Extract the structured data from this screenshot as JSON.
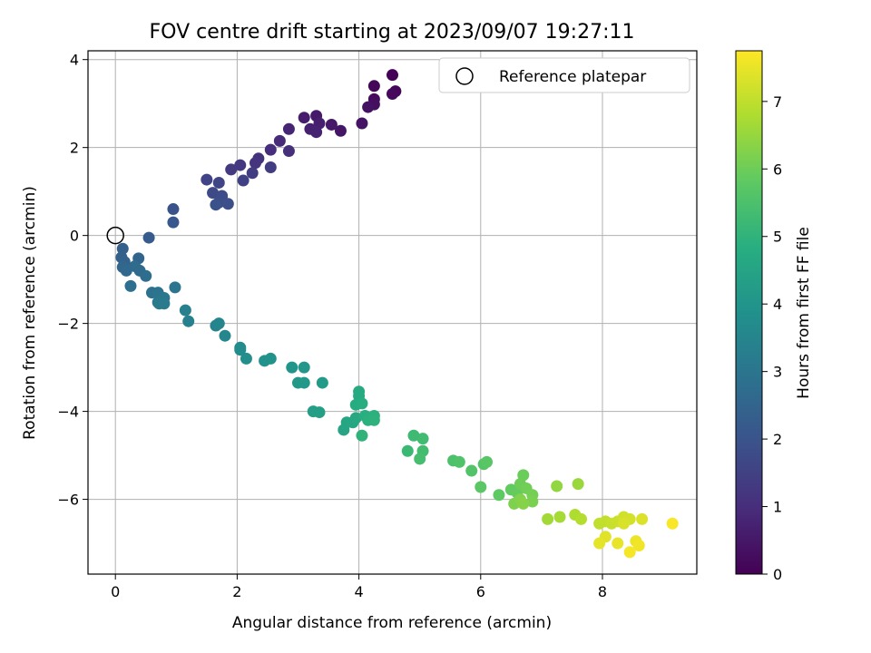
{
  "chart_data": {
    "type": "scatter",
    "title": "FOV centre drift starting at 2023/09/07 19:27:11",
    "xlabel": "Angular distance from reference (arcmin)",
    "ylabel": "Rotation from reference (arcmin)",
    "xlim": [
      -0.45,
      9.55
    ],
    "ylim": [
      -7.7,
      4.2
    ],
    "xticks": [
      0,
      2,
      4,
      6,
      8
    ],
    "yticks": [
      -6,
      -4,
      -2,
      0,
      2,
      4
    ],
    "xtick_labels": [
      "0",
      "2",
      "4",
      "6",
      "8"
    ],
    "ytick_labels": [
      "−6",
      "−4",
      "−2",
      "0",
      "2",
      "4"
    ],
    "grid": true,
    "colormap": "viridis",
    "colorbar": {
      "label": "Hours from first FF file",
      "range": [
        0,
        7.75
      ],
      "ticks": [
        0,
        1,
        2,
        3,
        4,
        5,
        6,
        7
      ],
      "tick_labels": [
        "0",
        "1",
        "2",
        "3",
        "4",
        "5",
        "6",
        "7"
      ]
    },
    "legend": {
      "placement": "top-right",
      "entries": [
        "Reference platepar"
      ]
    },
    "reference_point": {
      "x": 0,
      "y": 0
    },
    "points": [
      {
        "x": 4.55,
        "y": 3.65,
        "t": 0.05
      },
      {
        "x": 4.25,
        "y": 3.4,
        "t": 0.1
      },
      {
        "x": 4.6,
        "y": 3.28,
        "t": 0.15
      },
      {
        "x": 4.55,
        "y": 3.22,
        "t": 0.2
      },
      {
        "x": 4.25,
        "y": 3.1,
        "t": 0.25
      },
      {
        "x": 4.25,
        "y": 2.98,
        "t": 0.3
      },
      {
        "x": 4.15,
        "y": 2.92,
        "t": 0.35
      },
      {
        "x": 4.05,
        "y": 2.55,
        "t": 0.4
      },
      {
        "x": 3.7,
        "y": 2.38,
        "t": 0.45
      },
      {
        "x": 3.55,
        "y": 2.52,
        "t": 0.5
      },
      {
        "x": 3.3,
        "y": 2.72,
        "t": 0.55
      },
      {
        "x": 3.1,
        "y": 2.68,
        "t": 0.6
      },
      {
        "x": 3.35,
        "y": 2.55,
        "t": 0.65
      },
      {
        "x": 3.2,
        "y": 2.42,
        "t": 0.7
      },
      {
        "x": 3.3,
        "y": 2.35,
        "t": 0.75
      },
      {
        "x": 2.85,
        "y": 2.42,
        "t": 0.8
      },
      {
        "x": 2.7,
        "y": 2.15,
        "t": 0.9
      },
      {
        "x": 2.55,
        "y": 1.95,
        "t": 1.0
      },
      {
        "x": 2.85,
        "y": 1.92,
        "t": 1.05
      },
      {
        "x": 2.35,
        "y": 1.75,
        "t": 1.1
      },
      {
        "x": 2.3,
        "y": 1.65,
        "t": 1.15
      },
      {
        "x": 2.05,
        "y": 1.6,
        "t": 1.25
      },
      {
        "x": 1.9,
        "y": 1.5,
        "t": 1.3
      },
      {
        "x": 2.55,
        "y": 1.55,
        "t": 1.35
      },
      {
        "x": 2.25,
        "y": 1.42,
        "t": 1.4
      },
      {
        "x": 2.1,
        "y": 1.25,
        "t": 1.5
      },
      {
        "x": 1.5,
        "y": 1.27,
        "t": 1.55
      },
      {
        "x": 1.7,
        "y": 1.2,
        "t": 1.6
      },
      {
        "x": 1.6,
        "y": 0.97,
        "t": 1.7
      },
      {
        "x": 1.75,
        "y": 0.9,
        "t": 1.75
      },
      {
        "x": 1.7,
        "y": 0.75,
        "t": 1.8
      },
      {
        "x": 1.85,
        "y": 0.72,
        "t": 1.85
      },
      {
        "x": 1.65,
        "y": 0.7,
        "t": 1.9
      },
      {
        "x": 0.95,
        "y": 0.6,
        "t": 2.0
      },
      {
        "x": 0.95,
        "y": 0.3,
        "t": 2.1
      },
      {
        "x": 0.55,
        "y": -0.05,
        "t": 2.2
      },
      {
        "x": 0.12,
        "y": -0.3,
        "t": 2.35
      },
      {
        "x": 0.1,
        "y": -0.5,
        "t": 2.4
      },
      {
        "x": 0.15,
        "y": -0.6,
        "t": 2.45
      },
      {
        "x": 0.38,
        "y": -0.52,
        "t": 2.5
      },
      {
        "x": 0.12,
        "y": -0.72,
        "t": 2.55
      },
      {
        "x": 0.18,
        "y": -0.8,
        "t": 2.6
      },
      {
        "x": 0.4,
        "y": -0.8,
        "t": 2.65
      },
      {
        "x": 0.32,
        "y": -0.7,
        "t": 2.7
      },
      {
        "x": 0.5,
        "y": -0.92,
        "t": 2.75
      },
      {
        "x": 0.25,
        "y": -1.15,
        "t": 2.8
      },
      {
        "x": 0.6,
        "y": -1.3,
        "t": 2.9
      },
      {
        "x": 0.7,
        "y": -1.3,
        "t": 2.95
      },
      {
        "x": 0.98,
        "y": -1.18,
        "t": 3.0
      },
      {
        "x": 0.8,
        "y": -1.42,
        "t": 3.05
      },
      {
        "x": 0.7,
        "y": -1.52,
        "t": 3.1
      },
      {
        "x": 0.72,
        "y": -1.55,
        "t": 3.15
      },
      {
        "x": 0.8,
        "y": -1.55,
        "t": 3.2
      },
      {
        "x": 1.15,
        "y": -1.7,
        "t": 3.3
      },
      {
        "x": 1.2,
        "y": -1.95,
        "t": 3.35
      },
      {
        "x": 1.65,
        "y": -2.05,
        "t": 3.45
      },
      {
        "x": 1.7,
        "y": -2.0,
        "t": 3.5
      },
      {
        "x": 1.8,
        "y": -2.28,
        "t": 3.55
      },
      {
        "x": 2.05,
        "y": -2.55,
        "t": 3.7
      },
      {
        "x": 2.05,
        "y": -2.6,
        "t": 3.75
      },
      {
        "x": 2.15,
        "y": -2.8,
        "t": 3.8
      },
      {
        "x": 2.45,
        "y": -2.85,
        "t": 3.9
      },
      {
        "x": 2.55,
        "y": -2.8,
        "t": 3.95
      },
      {
        "x": 2.9,
        "y": -3.0,
        "t": 4.0
      },
      {
        "x": 3.1,
        "y": -3.0,
        "t": 4.05
      },
      {
        "x": 3.0,
        "y": -3.35,
        "t": 4.1
      },
      {
        "x": 3.1,
        "y": -3.35,
        "t": 4.15
      },
      {
        "x": 3.4,
        "y": -3.35,
        "t": 4.2
      },
      {
        "x": 3.25,
        "y": -4.0,
        "t": 4.3
      },
      {
        "x": 3.35,
        "y": -4.02,
        "t": 4.35
      },
      {
        "x": 3.75,
        "y": -4.42,
        "t": 4.5
      },
      {
        "x": 3.8,
        "y": -4.25,
        "t": 4.55
      },
      {
        "x": 3.9,
        "y": -4.25,
        "t": 4.6
      },
      {
        "x": 3.95,
        "y": -4.15,
        "t": 4.65
      },
      {
        "x": 4.0,
        "y": -3.55,
        "t": 4.7
      },
      {
        "x": 4.0,
        "y": -3.65,
        "t": 4.72
      },
      {
        "x": 3.95,
        "y": -3.85,
        "t": 4.75
      },
      {
        "x": 4.05,
        "y": -3.82,
        "t": 4.8
      },
      {
        "x": 4.1,
        "y": -4.1,
        "t": 4.85
      },
      {
        "x": 4.15,
        "y": -4.2,
        "t": 4.9
      },
      {
        "x": 4.25,
        "y": -4.1,
        "t": 4.92
      },
      {
        "x": 4.25,
        "y": -4.2,
        "t": 4.95
      },
      {
        "x": 4.05,
        "y": -4.55,
        "t": 5.0
      },
      {
        "x": 4.8,
        "y": -4.9,
        "t": 5.2
      },
      {
        "x": 4.9,
        "y": -4.55,
        "t": 5.25
      },
      {
        "x": 5.05,
        "y": -4.62,
        "t": 5.3
      },
      {
        "x": 5.05,
        "y": -4.9,
        "t": 5.35
      },
      {
        "x": 5.0,
        "y": -5.08,
        "t": 5.4
      },
      {
        "x": 5.55,
        "y": -5.12,
        "t": 5.5
      },
      {
        "x": 5.65,
        "y": -5.15,
        "t": 5.55
      },
      {
        "x": 5.85,
        "y": -5.35,
        "t": 5.6
      },
      {
        "x": 6.05,
        "y": -5.2,
        "t": 5.65
      },
      {
        "x": 6.1,
        "y": -5.15,
        "t": 5.7
      },
      {
        "x": 6.0,
        "y": -5.72,
        "t": 5.75
      },
      {
        "x": 6.3,
        "y": -5.9,
        "t": 5.8
      },
      {
        "x": 6.5,
        "y": -5.78,
        "t": 5.85
      },
      {
        "x": 6.6,
        "y": -5.85,
        "t": 5.9
      },
      {
        "x": 6.7,
        "y": -5.45,
        "t": 5.95
      },
      {
        "x": 6.65,
        "y": -5.65,
        "t": 6.0
      },
      {
        "x": 6.75,
        "y": -5.75,
        "t": 6.05
      },
      {
        "x": 6.85,
        "y": -5.9,
        "t": 6.1
      },
      {
        "x": 6.85,
        "y": -6.05,
        "t": 6.15
      },
      {
        "x": 6.55,
        "y": -6.1,
        "t": 6.2
      },
      {
        "x": 6.65,
        "y": -6.0,
        "t": 6.25
      },
      {
        "x": 6.7,
        "y": -6.1,
        "t": 6.3
      },
      {
        "x": 7.25,
        "y": -5.7,
        "t": 6.45
      },
      {
        "x": 7.6,
        "y": -5.65,
        "t": 6.55
      },
      {
        "x": 7.1,
        "y": -6.45,
        "t": 6.65
      },
      {
        "x": 7.3,
        "y": -6.4,
        "t": 6.7
      },
      {
        "x": 7.55,
        "y": -6.35,
        "t": 6.8
      },
      {
        "x": 7.65,
        "y": -6.45,
        "t": 6.85
      },
      {
        "x": 7.95,
        "y": -6.55,
        "t": 7.0
      },
      {
        "x": 8.05,
        "y": -6.5,
        "t": 7.05
      },
      {
        "x": 8.15,
        "y": -6.55,
        "t": 7.1
      },
      {
        "x": 8.25,
        "y": -6.5,
        "t": 7.15
      },
      {
        "x": 8.35,
        "y": -6.4,
        "t": 7.2
      },
      {
        "x": 8.45,
        "y": -6.45,
        "t": 7.25
      },
      {
        "x": 8.35,
        "y": -6.55,
        "t": 7.3
      },
      {
        "x": 8.65,
        "y": -6.45,
        "t": 7.35
      },
      {
        "x": 8.05,
        "y": -6.85,
        "t": 7.4
      },
      {
        "x": 7.95,
        "y": -7.0,
        "t": 7.45
      },
      {
        "x": 8.25,
        "y": -7.0,
        "t": 7.5
      },
      {
        "x": 8.55,
        "y": -6.95,
        "t": 7.55
      },
      {
        "x": 8.6,
        "y": -7.05,
        "t": 7.6
      },
      {
        "x": 8.45,
        "y": -7.2,
        "t": 7.65
      },
      {
        "x": 9.15,
        "y": -6.55,
        "t": 7.7
      }
    ]
  }
}
